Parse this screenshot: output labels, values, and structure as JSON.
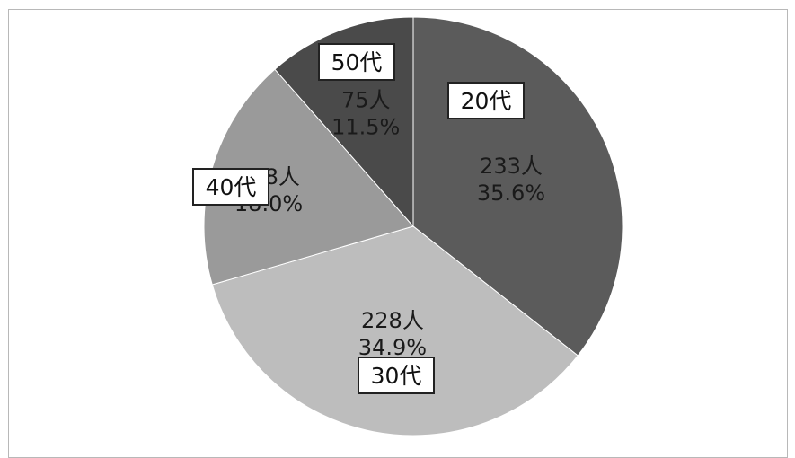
{
  "chart_data": {
    "type": "pie",
    "slices": [
      {
        "category": "20代",
        "count_label": "233人",
        "percent_label": "35.6%",
        "value": 35.6,
        "color": "#5b5b5b"
      },
      {
        "category": "30代",
        "count_label": "228人",
        "percent_label": "34.9%",
        "value": 34.9,
        "color": "#bdbdbd"
      },
      {
        "category": "40代",
        "count_label": "118人",
        "percent_label": "18.0%",
        "value": 18.0,
        "color": "#9a9a9a"
      },
      {
        "category": "50代",
        "count_label": "75人",
        "percent_label": "11.5%",
        "value": 11.5,
        "color": "#4a4a4a"
      }
    ],
    "start": "12 o'clock",
    "direction": "clockwise",
    "legend": "none"
  }
}
